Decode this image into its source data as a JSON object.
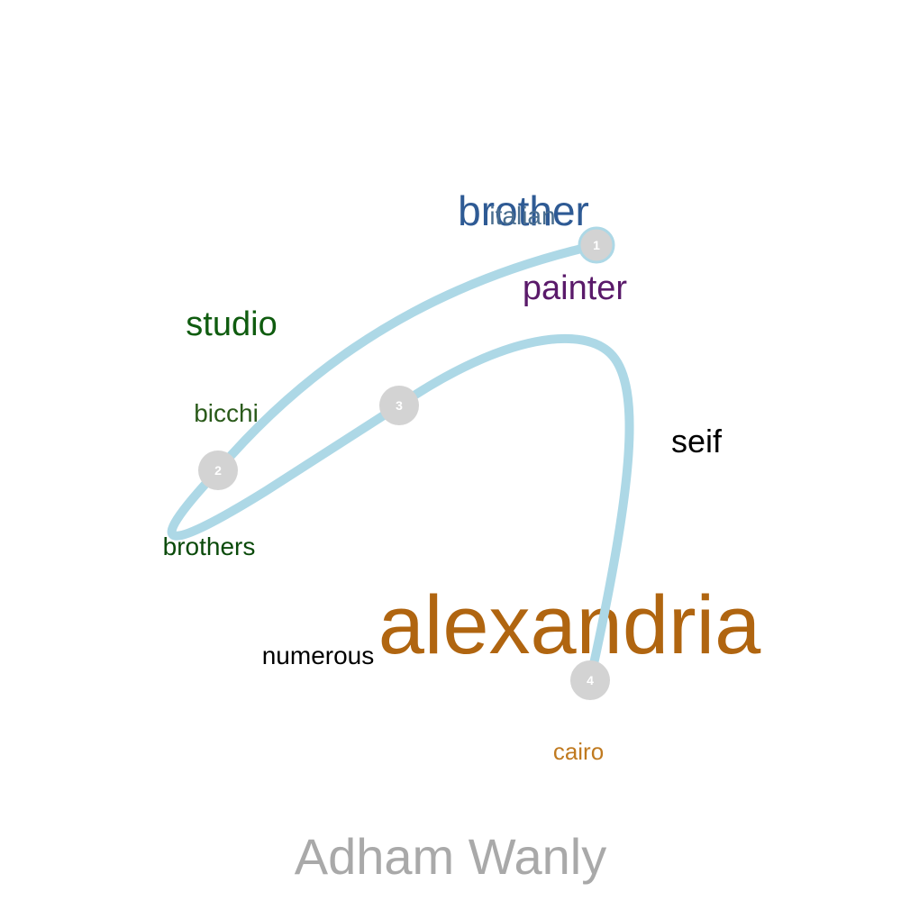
{
  "caption": "Adham Wanly",
  "path_color": "#add8e6",
  "node_color": "#d3d3d3",
  "nodes": [
    {
      "label": "1"
    },
    {
      "label": "2"
    },
    {
      "label": "3"
    },
    {
      "label": "4"
    }
  ],
  "words": [
    {
      "text": "brother",
      "color": "#2e5a94"
    },
    {
      "text": "italian",
      "color": "#4a6e8f"
    },
    {
      "text": "painter",
      "color": "#5a1a6a"
    },
    {
      "text": "studio",
      "color": "#0f5c0f"
    },
    {
      "text": "bicchi",
      "color": "#2a5a1a"
    },
    {
      "text": "seif",
      "color": "#000000"
    },
    {
      "text": "brothers",
      "color": "#0a4a0a"
    },
    {
      "text": "alexandria",
      "color": "#b06510"
    },
    {
      "text": "numerous",
      "color": "#000000"
    },
    {
      "text": "cairo",
      "color": "#c07a20"
    }
  ]
}
